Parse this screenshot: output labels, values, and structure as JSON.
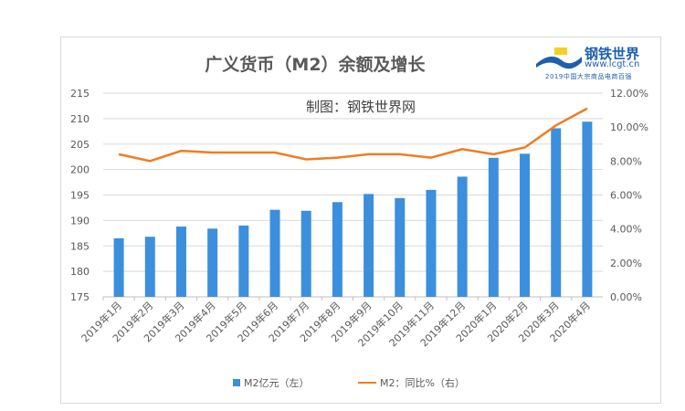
{
  "chart_data": {
    "type": "bar+line",
    "title": "广义货币（M2）余额及增长",
    "subtitle": "制图：钢铁世界网",
    "categories": [
      "2019年1月",
      "2019年2月",
      "2019年3月",
      "2019年4月",
      "2019年5月",
      "2019年6月",
      "2019年7月",
      "2019年8月",
      "2019年9月",
      "2019年10月",
      "2019年11月",
      "2019年12月",
      "2020年1月",
      "2020年2月",
      "2020年3月",
      "2020年4月"
    ],
    "series": [
      {
        "name": "M2亿元（左）",
        "type": "bar",
        "axis": "left",
        "color": "#3c8fdd",
        "values": [
          186.5,
          186.8,
          188.8,
          188.4,
          189.0,
          192.1,
          191.9,
          193.6,
          195.2,
          194.4,
          196.0,
          198.6,
          202.3,
          203.1,
          208.1,
          209.4
        ]
      },
      {
        "name": "M2：同比%（右）",
        "type": "line",
        "axis": "right",
        "color": "#f07c21",
        "values": [
          8.4,
          8.0,
          8.6,
          8.5,
          8.5,
          8.5,
          8.1,
          8.2,
          8.4,
          8.4,
          8.2,
          8.7,
          8.4,
          8.8,
          10.1,
          11.1
        ]
      }
    ],
    "yleft": {
      "lim": [
        175,
        215
      ],
      "ticks": [
        "175",
        "180",
        "185",
        "190",
        "195",
        "200",
        "205",
        "210",
        "215"
      ]
    },
    "yright": {
      "lim": [
        0,
        12
      ],
      "ticks": [
        "0.00%",
        "2.00%",
        "4.00%",
        "6.00%",
        "8.00%",
        "10.00%",
        "12.00%"
      ]
    },
    "grid": true,
    "legend": "bottom"
  },
  "logo": {
    "name": "钢铁世界",
    "url": "www.lcgt.cn",
    "slogan": "2019中国大宗商品电商百强"
  }
}
